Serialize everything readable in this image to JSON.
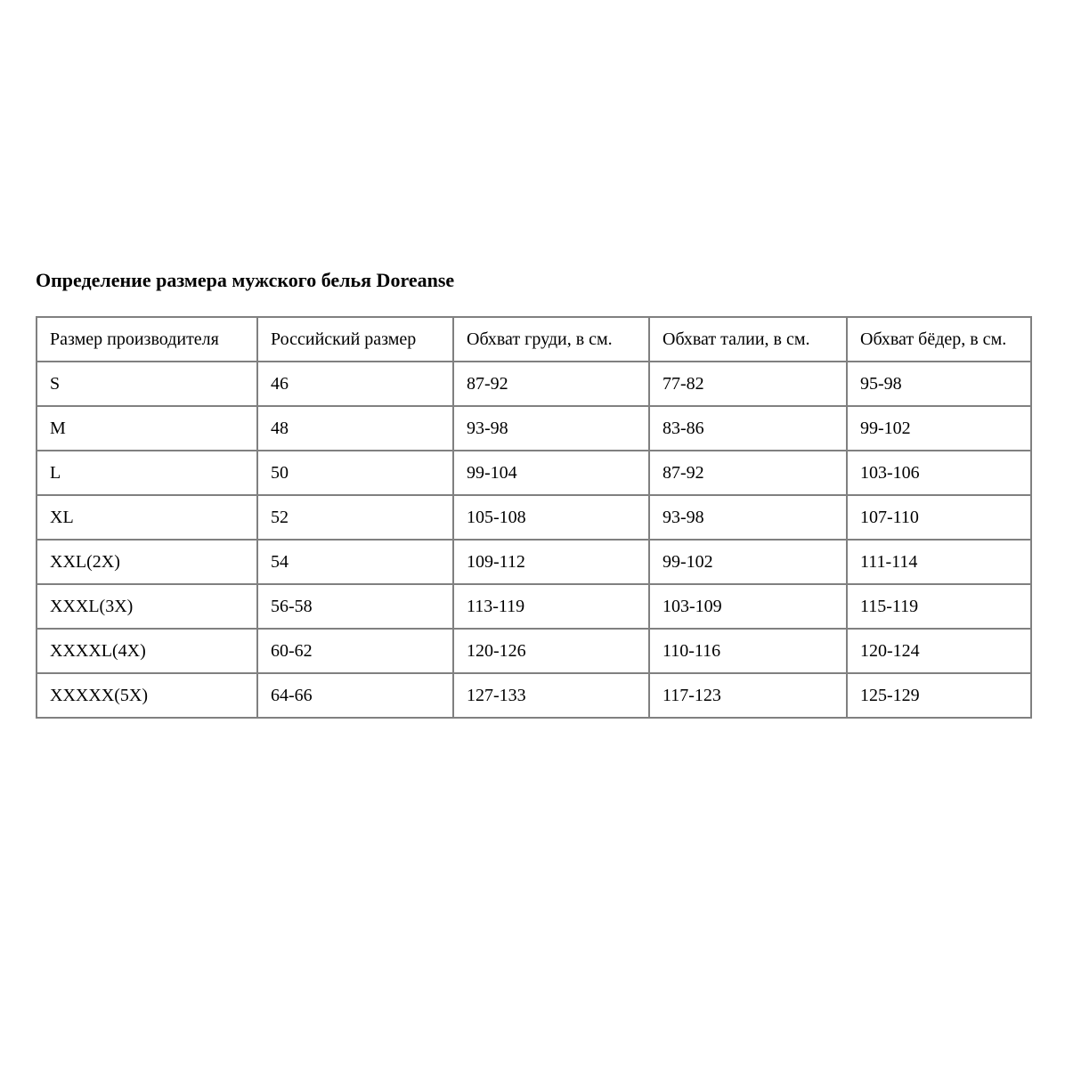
{
  "page": {
    "title": "Определение размера мужского белья Doreanse"
  },
  "size_table": {
    "columns": [
      "Размер производителя",
      "Российский размер",
      "Обхват груди, в см.",
      "Обхват талии, в см.",
      "Обхват бёдер, в см."
    ],
    "rows": [
      [
        "S",
        "46",
        "87-92",
        "77-82",
        "95-98"
      ],
      [
        "M",
        "48",
        "93-98",
        "83-86",
        "99-102"
      ],
      [
        "L",
        "50",
        "99-104",
        "87-92",
        "103-106"
      ],
      [
        "XL",
        "52",
        "105-108",
        "93-98",
        "107-110"
      ],
      [
        "XXL(2X)",
        "54",
        "109-112",
        "99-102",
        "111-114"
      ],
      [
        "XXXL(3X)",
        "56-58",
        "113-119",
        "103-109",
        "115-119"
      ],
      [
        "XXXXL(4X)",
        "60-62",
        "120-126",
        "110-116",
        "120-124"
      ],
      [
        "XXXXX(5X)",
        "64-66",
        "127-133",
        "117-123",
        "125-129"
      ]
    ],
    "border_color": "#808080",
    "text_color": "#000000",
    "background_color": "#ffffff"
  }
}
